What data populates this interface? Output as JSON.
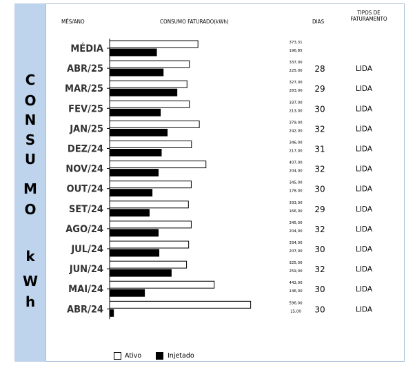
{
  "sidebar": {
    "letters": [
      "C",
      "O",
      "N",
      "S",
      "U",
      "M",
      "O",
      "k",
      "W",
      "h"
    ]
  },
  "headers": {
    "month": "MÊS/ANO",
    "consumption": "CONSUMO FATURADO(kWh)",
    "days": "DIAS",
    "billing_type_line1": "TIPOS DE",
    "billing_type_line2": "FATURAMENTO"
  },
  "legend": {
    "ativo": "Ativo",
    "injetado": "Injetado"
  },
  "colors": {
    "sidebar_bg": "#bed3ec",
    "ativo_fill": "#ffffff",
    "injetado_fill": "#000000",
    "border": "#a9bfd8"
  },
  "chart_data": {
    "type": "bar",
    "orientation": "horizontal",
    "categories": [
      "MÉDIA",
      "ABR/25",
      "MAR/25",
      "FEV/25",
      "JAN/25",
      "DEZ/24",
      "NOV/24",
      "OUT/24",
      "SET/24",
      "AGO/24",
      "JUL/24",
      "JUN/24",
      "MAI/24",
      "ABR/24"
    ],
    "value_labels_ativo": [
      "373,31",
      "337,00",
      "327,00",
      "337,00",
      "379,00",
      "346,00",
      "407,00",
      "345,00",
      "333,00",
      "345,00",
      "334,00",
      "325,00",
      "442,00",
      "596,00"
    ],
    "value_labels_injetado": [
      "196,85",
      "225,00",
      "283,00",
      "213,00",
      "242,00",
      "217,00",
      "204,00",
      "178,00",
      "166,00",
      "204,00",
      "207,00",
      "259,00",
      "146,00",
      "15,00"
    ],
    "series": [
      {
        "name": "Ativo",
        "values": [
          373.31,
          337,
          327,
          337,
          379,
          346,
          407,
          345,
          333,
          345,
          334,
          325,
          442,
          596
        ]
      },
      {
        "name": "Injetado",
        "values": [
          196.85,
          225,
          283,
          213,
          242,
          217,
          204,
          178,
          166,
          204,
          207,
          259,
          146,
          15
        ]
      }
    ],
    "dias": [
      "",
      "28",
      "29",
      "30",
      "32",
      "31",
      "32",
      "30",
      "29",
      "32",
      "30",
      "32",
      "30",
      "30"
    ],
    "tipos_faturamento": [
      "",
      "LIDA",
      "LIDA",
      "LIDA",
      "LIDA",
      "LIDA",
      "LIDA",
      "LIDA",
      "LIDA",
      "LIDA",
      "LIDA",
      "LIDA",
      "LIDA",
      "LIDA"
    ],
    "xlim": [
      0,
      600
    ],
    "legend_position": "bottom"
  }
}
